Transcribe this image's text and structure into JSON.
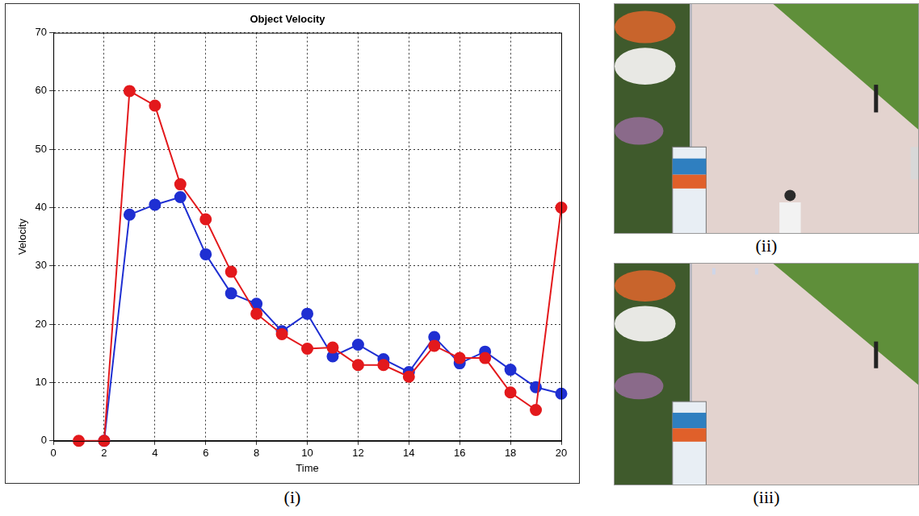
{
  "chart_data": {
    "type": "line",
    "title": "Object Velocity",
    "x_label": "Time",
    "y_label": "Velocity",
    "x": [
      1,
      2,
      3,
      4,
      5,
      6,
      7,
      8,
      9,
      10,
      11,
      12,
      13,
      14,
      15,
      16,
      17,
      18,
      19,
      20
    ],
    "series": [
      {
        "color": "#e3191c",
        "marker": "circle",
        "line_style": "solid",
        "values": [
          0,
          0,
          60,
          57.5,
          44,
          38,
          29,
          21.8,
          18.3,
          15.8,
          16,
          13,
          13,
          11,
          16.3,
          14.2,
          14.2,
          8.3,
          5.3,
          40
        ]
      },
      {
        "color": "#1f2fd2",
        "marker": "circle",
        "line_style": "solid",
        "values": [
          null,
          0,
          38.8,
          40.5,
          41.8,
          32,
          25.3,
          23.5,
          18.8,
          21.8,
          14.5,
          16.5,
          14,
          11.8,
          17.8,
          13.3,
          15.3,
          12.2,
          9.2,
          8.1
        ]
      }
    ],
    "xlim": [
      0,
      20
    ],
    "xticks": [
      0,
      2,
      4,
      6,
      8,
      10,
      12,
      14,
      16,
      18,
      20
    ],
    "ylim": [
      0,
      70
    ],
    "yticks": [
      0,
      10,
      20,
      30,
      40,
      50,
      60,
      70
    ],
    "grid": true
  },
  "panels": {
    "chart": "(i)",
    "photos": [
      "(ii)",
      "(iii)"
    ]
  }
}
